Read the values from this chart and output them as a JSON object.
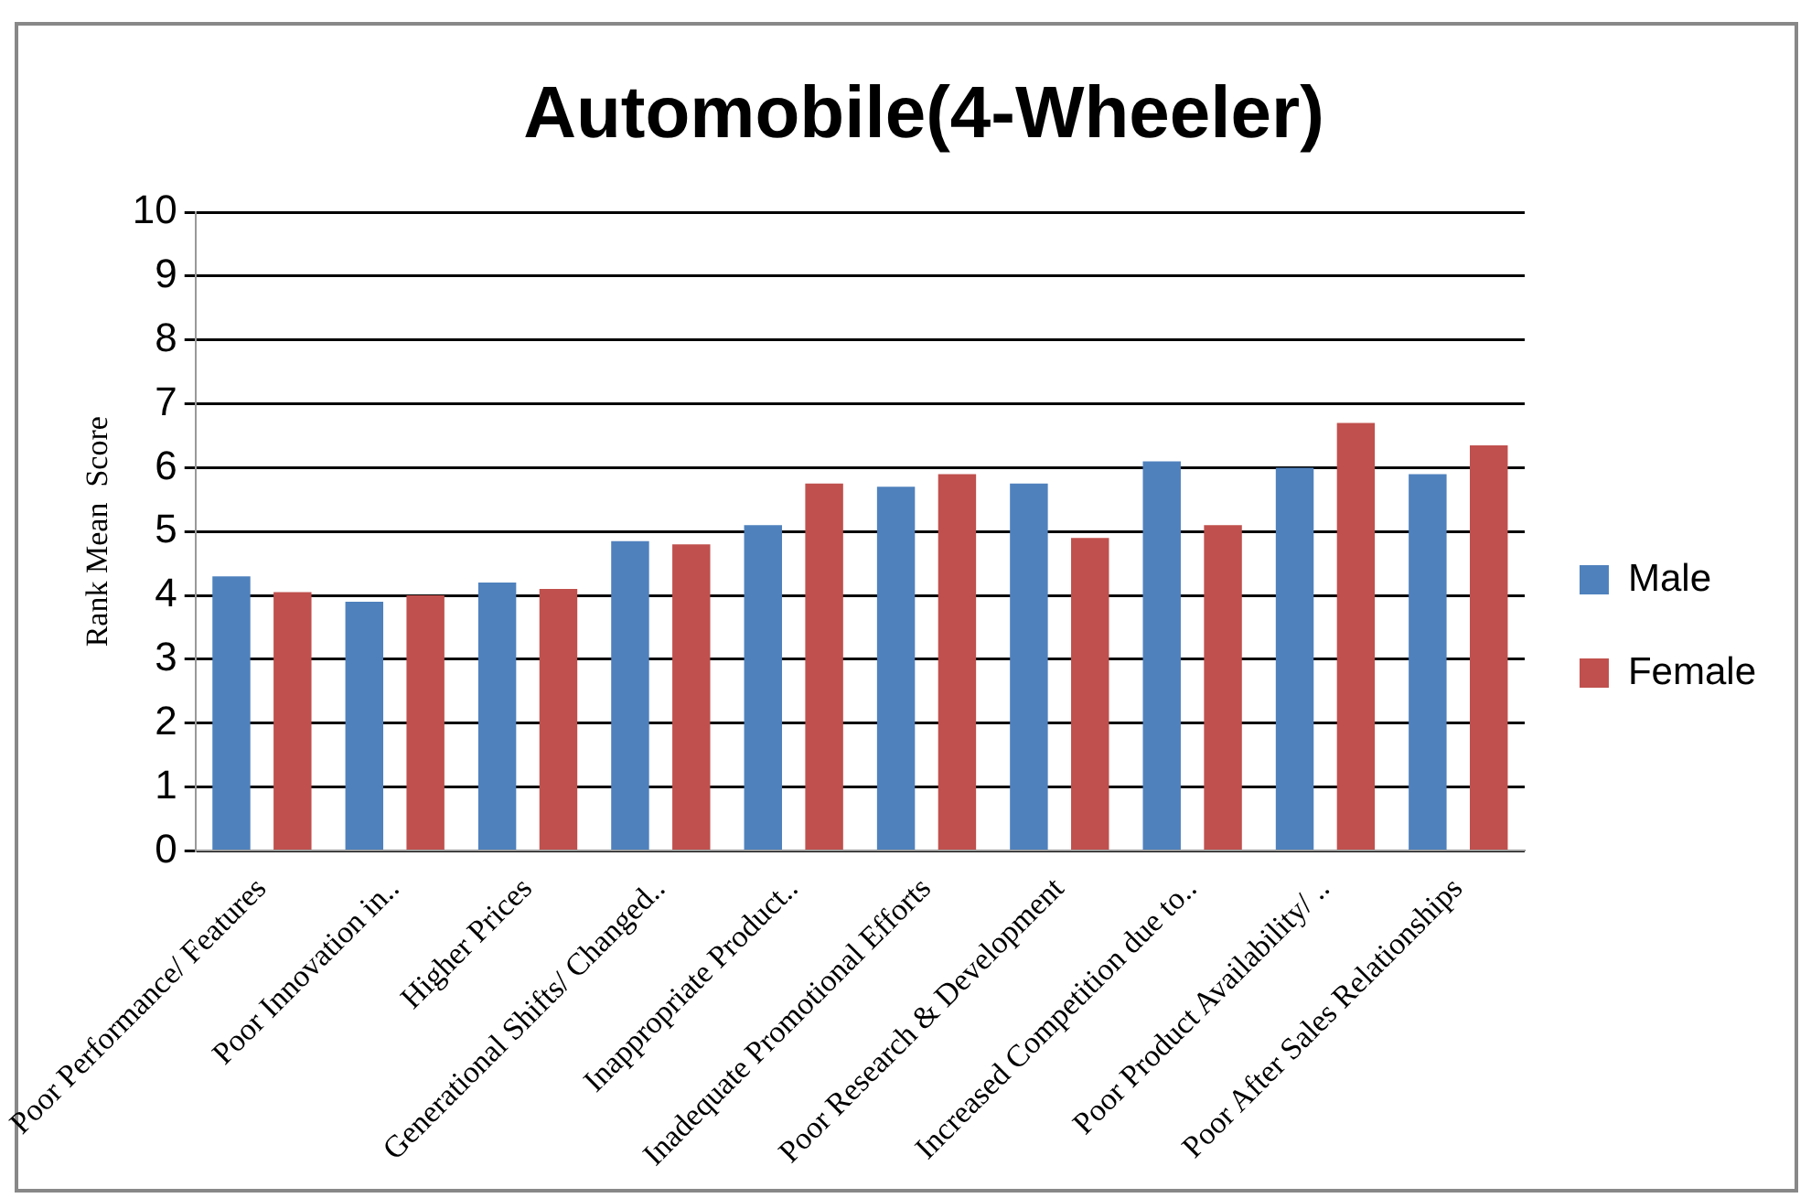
{
  "chart_data": {
    "type": "bar",
    "title": "Automobile(4-Wheeler)",
    "ylabel": "Rank Mean  Score",
    "categories": [
      "Poor Performance/ Features",
      "Poor Innovation in..",
      "Higher Prices",
      "Generational Shifts/ Changed..",
      "Inappropriate Product..",
      "Inadequate Promotional Efforts",
      "Poor Research & Development",
      "Increased Competition due to..",
      "Poor Product Availability/ ..",
      "Poor After Sales Relationships"
    ],
    "series": [
      {
        "name": "Male",
        "color": "#4f81bd",
        "values": [
          4.3,
          3.9,
          4.2,
          4.85,
          5.1,
          5.7,
          5.75,
          6.1,
          6.0,
          5.9
        ]
      },
      {
        "name": "Female",
        "color": "#c0504d",
        "values": [
          4.05,
          4.0,
          4.1,
          4.8,
          5.75,
          5.9,
          4.9,
          5.1,
          6.7,
          6.35
        ]
      }
    ],
    "ylim": [
      0,
      10
    ],
    "yticks": [
      0,
      1,
      2,
      3,
      4,
      5,
      6,
      7,
      8,
      9,
      10
    ],
    "grid": "y",
    "legend": "right"
  }
}
